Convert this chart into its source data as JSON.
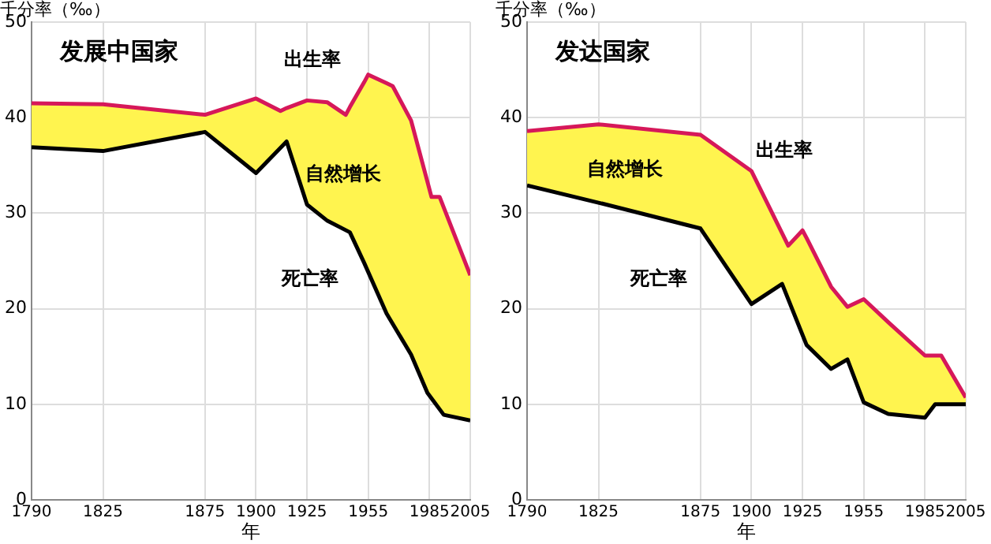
{
  "chart_data": [
    {
      "type": "line",
      "title": "发展中国家",
      "xlabel": "年",
      "ylabel": "千分率（‰）",
      "xlim": [
        1790,
        2005
      ],
      "xticks": [
        1790,
        1825,
        1875,
        1900,
        1925,
        1955,
        1985,
        2005
      ],
      "ylim": [
        0,
        50
      ],
      "yticks": [
        0,
        10,
        20,
        30,
        40,
        50
      ],
      "grid": true,
      "legend": false,
      "marker": "none",
      "series": [
        {
          "color": "#d6185a",
          "x": [
            1790,
            1825,
            1875,
            1900,
            1912,
            1915,
            1925,
            1935,
            1944,
            1946,
            1953,
            1955,
            1964,
            1967,
            1976,
            1984,
            1986,
            1990,
            1992,
            2005
          ],
          "values": [
            41.5,
            41.4,
            40.3,
            42,
            40.7,
            41.0,
            41.8,
            41.6,
            40.3,
            41.1,
            43.7,
            44.5,
            43.6,
            43.3,
            39.7,
            33.3,
            31.7,
            31.7,
            30.6,
            23.5
          ],
          "lower": [
            36.9,
            36.5,
            38.5,
            34.2,
            36.8,
            37.5,
            30.9,
            29.2,
            28.2,
            28,
            24.8,
            23.8,
            19.5,
            18.4,
            15.2,
            11.2,
            10.6,
            9.5,
            8.9,
            8.3
          ],
          "upper": [
            41.5,
            41.4,
            40.3,
            42,
            40.7,
            41.0,
            41.8,
            41.6,
            40.3,
            41.1,
            43.7,
            44.5,
            43.6,
            43.3,
            39.7,
            33.3,
            31.7,
            31.7,
            30.6,
            23.5
          ]
        },
        {
          "color": "#000000",
          "x": [
            1790,
            1825,
            1875,
            1900,
            1915,
            1925,
            1935,
            1946,
            1953,
            1964,
            1976,
            1984,
            1992,
            2005
          ],
          "values": [
            36.9,
            36.5,
            38.5,
            34.2,
            37.5,
            30.9,
            29.2,
            28,
            24.8,
            19.5,
            15.2,
            11.2,
            8.9,
            8.3
          ]
        }
      ],
      "annotations": [
        "出生率",
        "自然增长",
        "死亡率"
      ]
    },
    {
      "type": "line",
      "title": "发达国家",
      "xlabel": "年",
      "ylabel": "千分率（‰）",
      "xlim": [
        1790,
        2005
      ],
      "xticks": [
        1790,
        1825,
        1875,
        1900,
        1925,
        1955,
        1985,
        2005
      ],
      "ylim": [
        0,
        50
      ],
      "yticks": [
        0,
        10,
        20,
        30,
        40,
        50
      ],
      "grid": true,
      "legend": false,
      "marker": "none",
      "series": [
        {
          "color": "#d6185a",
          "x": [
            1790,
            1825,
            1875,
            1900,
            1915,
            1918,
            1925,
            1927,
            1939,
            1947,
            1955,
            1967,
            1985,
            1990,
            1993,
            2005
          ],
          "values": [
            38.6,
            39.3,
            38.2,
            34.4,
            27.9,
            26.6,
            28.2,
            27.4,
            22.3,
            20.2,
            21,
            18.6,
            15.1,
            15.1,
            15.1,
            10.7
          ],
          "lower": [
            32.9,
            31.1,
            28.4,
            20.5,
            22.6,
            21.0,
            17.3,
            16.2,
            13.7,
            14.7,
            10.2,
            9,
            8.6,
            10,
            10,
            10
          ],
          "upper": [
            38.6,
            39.3,
            38.2,
            34.4,
            27.9,
            26.6,
            28.2,
            27.4,
            22.3,
            20.2,
            21,
            18.6,
            15.1,
            15.1,
            15.1,
            10.7
          ]
        },
        {
          "color": "#000000",
          "x": [
            1790,
            1825,
            1875,
            1900,
            1915,
            1927,
            1939,
            1947,
            1955,
            1967,
            1985,
            1990,
            2005
          ],
          "values": [
            32.9,
            31.1,
            28.4,
            20.5,
            22.6,
            16.2,
            13.7,
            14.7,
            10.2,
            9,
            8.6,
            10,
            10
          ]
        }
      ],
      "annotations": [
        "出生率",
        "自然增长",
        "死亡率"
      ]
    }
  ]
}
